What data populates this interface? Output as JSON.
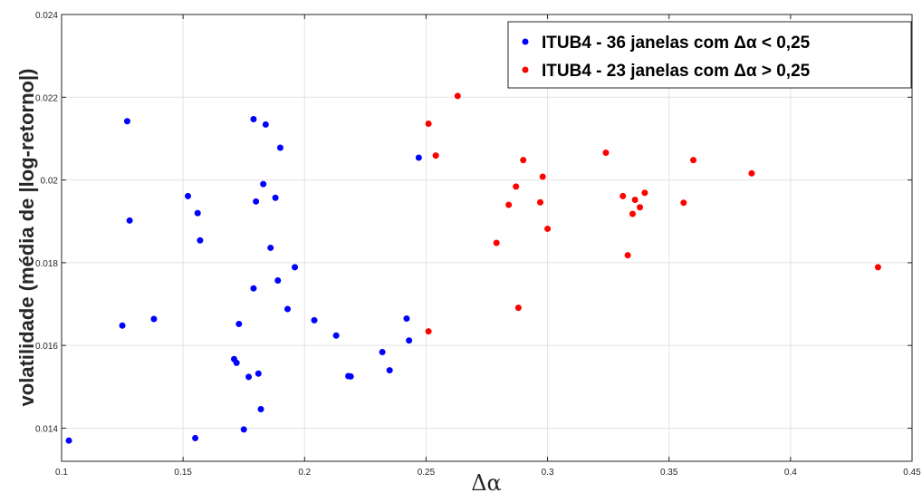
{
  "chart_data": {
    "type": "scatter",
    "title": "",
    "xlabel": "Δα",
    "ylabel": "volatilidade (média de |log-retorno|)",
    "xlim": [
      0.1,
      0.45
    ],
    "ylim": [
      0.0132,
      0.024
    ],
    "xticks": [
      "0.1",
      "0.15",
      "0.2",
      "0.25",
      "0.3",
      "0.35",
      "0.4",
      "0.45"
    ],
    "yticks": [
      "0.014",
      "0.016",
      "0.018",
      "0.02",
      "0.022",
      "0.024"
    ],
    "grid": true,
    "legend_position": "top-right",
    "series": [
      {
        "name": "ITUB4 - 36 janelas com Δα < 0,25",
        "color": "#0000ff",
        "points": [
          [
            0.103,
            0.0137
          ],
          [
            0.125,
            0.01648
          ],
          [
            0.127,
            0.02142
          ],
          [
            0.128,
            0.01902
          ],
          [
            0.138,
            0.01664
          ],
          [
            0.152,
            0.01961
          ],
          [
            0.155,
            0.01376
          ],
          [
            0.156,
            0.0192
          ],
          [
            0.157,
            0.01854
          ],
          [
            0.171,
            0.01567
          ],
          [
            0.172,
            0.01558
          ],
          [
            0.173,
            0.01652
          ],
          [
            0.175,
            0.01397
          ],
          [
            0.177,
            0.01524
          ],
          [
            0.179,
            0.02147
          ],
          [
            0.179,
            0.01738
          ],
          [
            0.18,
            0.01948
          ],
          [
            0.181,
            0.01532
          ],
          [
            0.182,
            0.01446
          ],
          [
            0.183,
            0.0199
          ],
          [
            0.184,
            0.02134
          ],
          [
            0.186,
            0.01836
          ],
          [
            0.188,
            0.01957
          ],
          [
            0.189,
            0.01757
          ],
          [
            0.19,
            0.02078
          ],
          [
            0.193,
            0.01688
          ],
          [
            0.196,
            0.01789
          ],
          [
            0.204,
            0.01661
          ],
          [
            0.213,
            0.01624
          ],
          [
            0.218,
            0.01526
          ],
          [
            0.219,
            0.01525
          ],
          [
            0.232,
            0.01584
          ],
          [
            0.235,
            0.0154
          ],
          [
            0.242,
            0.01665
          ],
          [
            0.243,
            0.01612
          ],
          [
            0.247,
            0.02054
          ]
        ]
      },
      {
        "name": "ITUB4 - 23 janelas com Δα > 0,25",
        "color": "#ff0000",
        "points": [
          [
            0.251,
            0.02136
          ],
          [
            0.251,
            0.01634
          ],
          [
            0.254,
            0.02059
          ],
          [
            0.263,
            0.02203
          ],
          [
            0.279,
            0.01848
          ],
          [
            0.284,
            0.0194
          ],
          [
            0.287,
            0.01984
          ],
          [
            0.288,
            0.01691
          ],
          [
            0.29,
            0.02048
          ],
          [
            0.297,
            0.01946
          ],
          [
            0.298,
            0.02008
          ],
          [
            0.3,
            0.01882
          ],
          [
            0.324,
            0.02066
          ],
          [
            0.331,
            0.01961
          ],
          [
            0.333,
            0.01818
          ],
          [
            0.335,
            0.01918
          ],
          [
            0.336,
            0.01952
          ],
          [
            0.338,
            0.01934
          ],
          [
            0.34,
            0.01969
          ],
          [
            0.356,
            0.01945
          ],
          [
            0.36,
            0.02048
          ],
          [
            0.384,
            0.02016
          ],
          [
            0.436,
            0.01789
          ]
        ]
      }
    ]
  }
}
